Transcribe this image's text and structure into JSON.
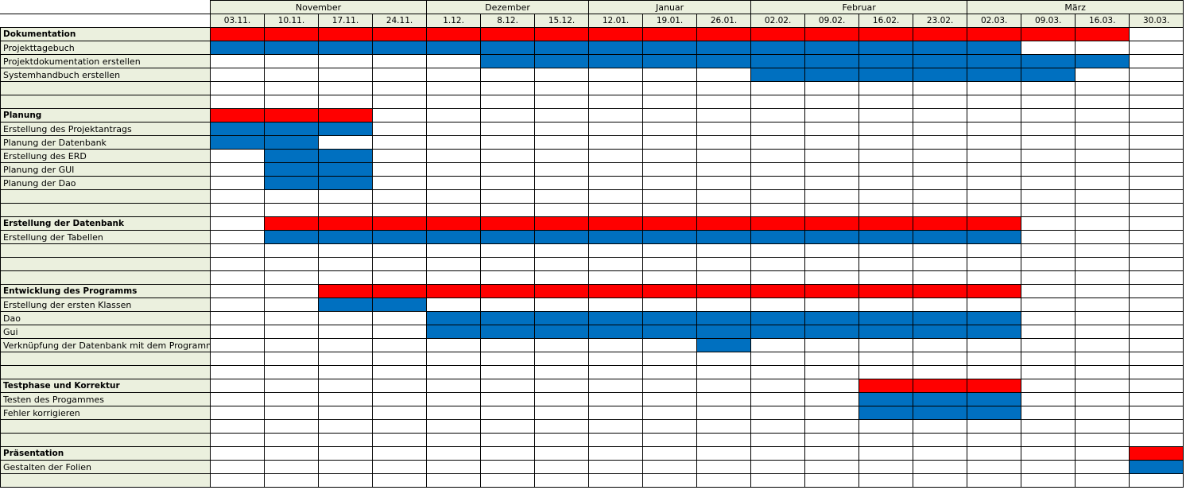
{
  "colors": {
    "phase_bar": "#ff0000",
    "task_bar": "#0070c0",
    "label_bg": "#ebf0de",
    "grid_line": "#000000"
  },
  "months": [
    {
      "label": "November",
      "span": 4
    },
    {
      "label": "Dezember",
      "span": 3
    },
    {
      "label": "Januar",
      "span": 3
    },
    {
      "label": "Februar",
      "span": 4
    },
    {
      "label": "März",
      "span": 4
    }
  ],
  "weeks": [
    "03.11.",
    "10.11.",
    "17.11.",
    "24.11.",
    "1.12.",
    "8.12.",
    "15.12.",
    "12.01.",
    "19.01.",
    "26.01.",
    "02.02.",
    "09.02.",
    "16.02.",
    "23.02.",
    "02.03.",
    "09.03.",
    "16.03.",
    "30.03."
  ],
  "rows": [
    {
      "label": "Dokumentation",
      "kind": "phase",
      "bar": "phase",
      "start": 0,
      "end": 16
    },
    {
      "label": "Projekttagebuch",
      "kind": "task",
      "bar": "task",
      "start": 0,
      "end": 14
    },
    {
      "label": "Projektdokumentation erstellen",
      "kind": "task",
      "bar": "task",
      "start": 5,
      "end": 16
    },
    {
      "label": "Systemhandbuch erstellen",
      "kind": "task",
      "bar": "task",
      "start": 10,
      "end": 15
    },
    {
      "label": "",
      "kind": "blank"
    },
    {
      "label": "",
      "kind": "blank"
    },
    {
      "label": "Planung",
      "kind": "phase",
      "bar": "phase",
      "start": 0,
      "end": 2
    },
    {
      "label": "Erstellung des Projektantrags",
      "kind": "task",
      "bar": "task",
      "start": 0,
      "end": 2
    },
    {
      "label": "Planung der Datenbank",
      "kind": "task",
      "bar": "task",
      "start": 0,
      "end": 1
    },
    {
      "label": "Erstellung des ERD",
      "kind": "task",
      "bar": "task",
      "start": 1,
      "end": 2
    },
    {
      "label": "Planung der GUI",
      "kind": "task",
      "bar": "task",
      "start": 1,
      "end": 2
    },
    {
      "label": "Planung der Dao",
      "kind": "task",
      "bar": "task",
      "start": 1,
      "end": 2
    },
    {
      "label": "",
      "kind": "blank"
    },
    {
      "label": "",
      "kind": "blank"
    },
    {
      "label": "Erstellung der Datenbank",
      "kind": "phase",
      "bar": "phase",
      "start": 1,
      "end": 14
    },
    {
      "label": "Erstellung der Tabellen",
      "kind": "task",
      "bar": "task",
      "start": 1,
      "end": 14
    },
    {
      "label": "",
      "kind": "blank"
    },
    {
      "label": "",
      "kind": "blank"
    },
    {
      "label": "",
      "kind": "blank"
    },
    {
      "label": "Entwicklung des Programms",
      "kind": "phase",
      "bar": "phase",
      "start": 2,
      "end": 14
    },
    {
      "label": "Erstellung der ersten Klassen",
      "kind": "task",
      "bar": "task",
      "start": 2,
      "end": 3
    },
    {
      "label": "Dao",
      "kind": "task",
      "bar": "task",
      "start": 4,
      "end": 14
    },
    {
      "label": "Gui",
      "kind": "task",
      "bar": "task",
      "start": 4,
      "end": 14
    },
    {
      "label": "Verknüpfung der Datenbank mit dem Programm",
      "kind": "task",
      "bar": "task",
      "start": 9,
      "end": 9
    },
    {
      "label": "",
      "kind": "blank"
    },
    {
      "label": "",
      "kind": "blank"
    },
    {
      "label": "Testphase und Korrektur",
      "kind": "phase",
      "bar": "phase",
      "start": 12,
      "end": 14
    },
    {
      "label": "Testen des Progammes",
      "kind": "task",
      "bar": "task",
      "start": 12,
      "end": 14
    },
    {
      "label": "Fehler korrigieren",
      "kind": "task",
      "bar": "task",
      "start": 12,
      "end": 14
    },
    {
      "label": "",
      "kind": "blank"
    },
    {
      "label": "",
      "kind": "blank"
    },
    {
      "label": "Präsentation",
      "kind": "phase",
      "bar": "phase",
      "start": 17,
      "end": 17
    },
    {
      "label": "Gestalten der Folien",
      "kind": "task",
      "bar": "task",
      "start": 17,
      "end": 17
    },
    {
      "label": "",
      "kind": "blank"
    }
  ]
}
